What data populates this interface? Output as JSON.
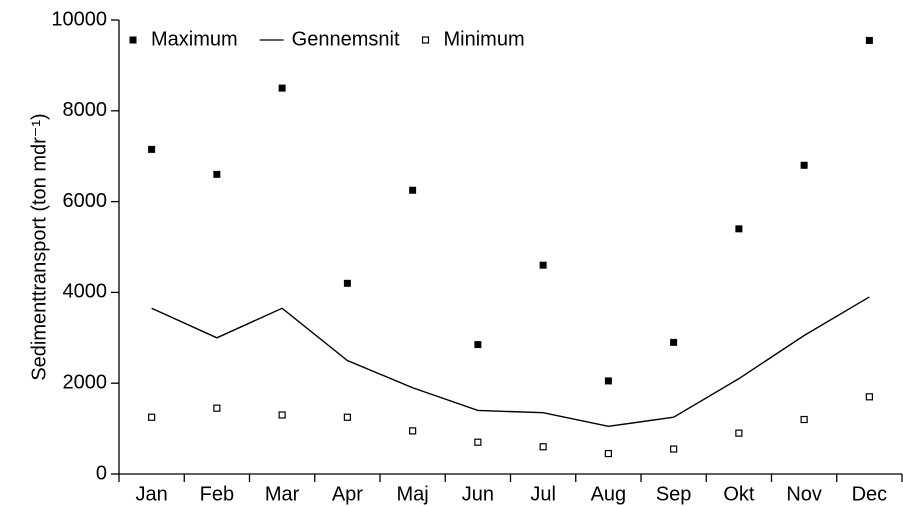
{
  "chart_data": {
    "type": "mixed",
    "y_label": "Sedimenttransport (ton mdr⁻¹)",
    "categories": [
      "Jan",
      "Feb",
      "Mar",
      "Apr",
      "Maj",
      "Jun",
      "Jul",
      "Aug",
      "Sep",
      "Okt",
      "Nov",
      "Dec"
    ],
    "series": [
      {
        "name": "Maximum",
        "color": "#000000",
        "style": "filled-square",
        "values": [
          7150,
          6600,
          8500,
          4200,
          6250,
          2850,
          4600,
          2050,
          2900,
          5400,
          6800,
          9550
        ]
      },
      {
        "name": "Gennemsnit",
        "color": "#000000",
        "style": "line",
        "values": [
          3650,
          3000,
          3650,
          2500,
          1900,
          1400,
          1350,
          1050,
          1250,
          2100,
          3050,
          3900
        ]
      },
      {
        "name": "Minimum",
        "color": "#000000",
        "style": "open-square",
        "values": [
          1250,
          1450,
          1300,
          1250,
          950,
          700,
          600,
          450,
          550,
          900,
          1200,
          1700
        ]
      }
    ],
    "ylim": [
      0,
      10000
    ],
    "yticks": [
      0,
      2000,
      4000,
      6000,
      8000,
      10000
    ],
    "grid": false,
    "legend": "top-left"
  }
}
